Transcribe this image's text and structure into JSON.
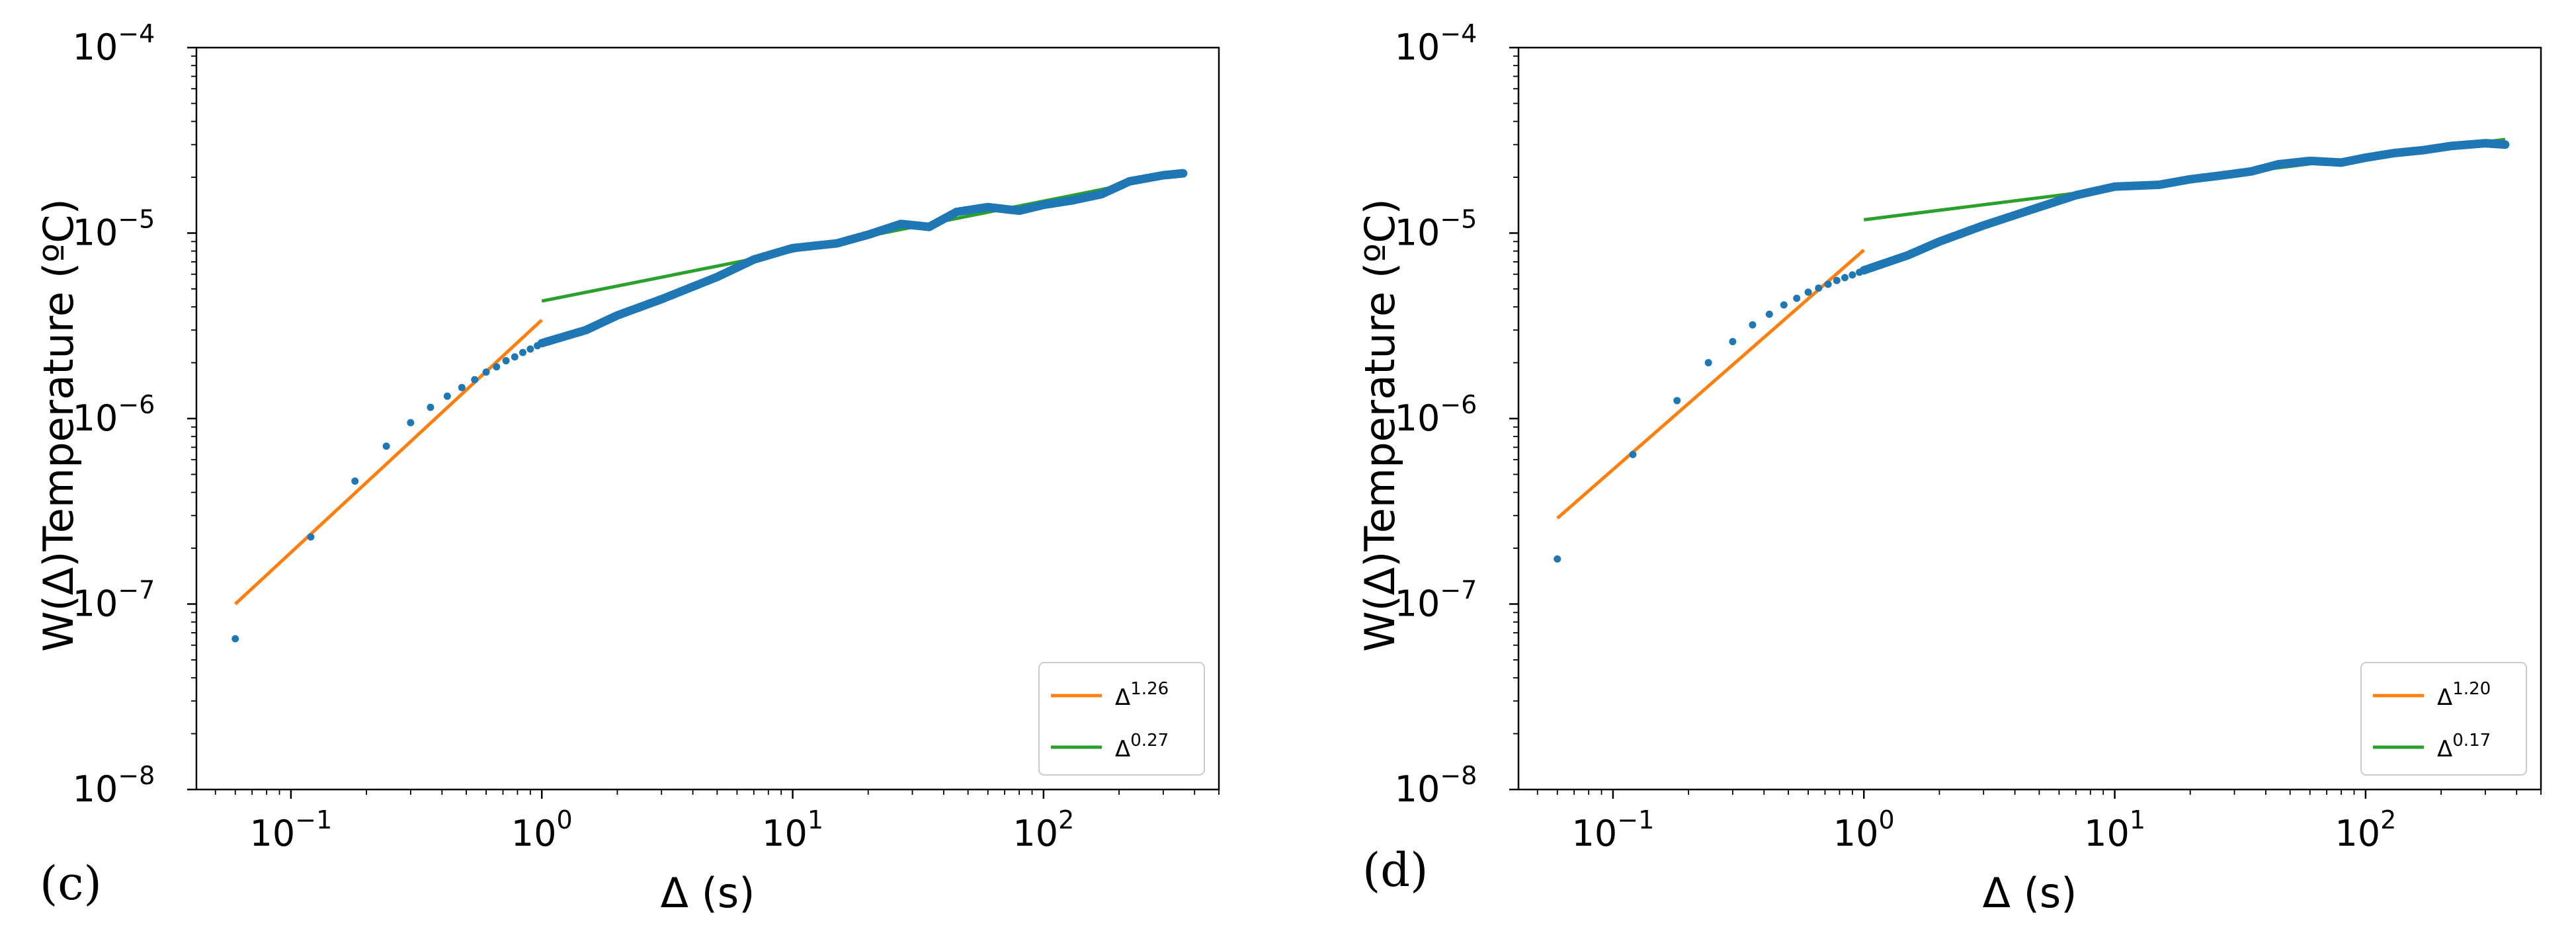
{
  "chart_data": [
    {
      "type": "scatter",
      "panel_label": "(c)",
      "xscale": "log",
      "yscale": "log",
      "xlim": [
        0.042,
        500
      ],
      "ylim": [
        1e-08,
        0.0001
      ],
      "xlabel": "Δ (s)",
      "ylabel": "W(Δ)Temperature (ºC)",
      "x_ticks": [
        {
          "base": "10",
          "exp": "−1"
        },
        {
          "base": "10",
          "exp": "0"
        },
        {
          "base": "10",
          "exp": "1"
        },
        {
          "base": "10",
          "exp": "2"
        }
      ],
      "y_ticks": [
        {
          "base": "10",
          "exp": "−8"
        },
        {
          "base": "10",
          "exp": "−7"
        },
        {
          "base": "10",
          "exp": "−6"
        },
        {
          "base": "10",
          "exp": "−5"
        },
        {
          "base": "10",
          "exp": "−4"
        }
      ],
      "data_series": {
        "name": "W(Δ)",
        "color": "#1f77b4",
        "points": [
          [
            0.06,
            6.5e-08
          ],
          [
            0.12,
            2.3e-07
          ],
          [
            0.18,
            4.6e-07
          ],
          [
            0.24,
            7.1e-07
          ],
          [
            0.3,
            9.5e-07
          ],
          [
            0.36,
            1.15e-06
          ],
          [
            0.42,
            1.32e-06
          ],
          [
            0.48,
            1.47e-06
          ],
          [
            0.54,
            1.62e-06
          ],
          [
            0.6,
            1.78e-06
          ],
          [
            0.66,
            1.9e-06
          ],
          [
            0.72,
            2.05e-06
          ],
          [
            0.78,
            2.15e-06
          ],
          [
            0.84,
            2.27e-06
          ],
          [
            0.9,
            2.37e-06
          ],
          [
            0.96,
            2.47e-06
          ]
        ],
        "curve": [
          [
            1.0,
            2.55e-06
          ],
          [
            1.5,
            3e-06
          ],
          [
            2.0,
            3.6e-06
          ],
          [
            3.0,
            4.4e-06
          ],
          [
            5.0,
            5.8e-06
          ],
          [
            7.0,
            7.2e-06
          ],
          [
            10.0,
            8.3e-06
          ],
          [
            15.0,
            8.8e-06
          ],
          [
            20.0,
            9.8e-06
          ],
          [
            27.0,
            1.12e-05
          ],
          [
            35.0,
            1.08e-05
          ],
          [
            45.0,
            1.3e-05
          ],
          [
            60.0,
            1.38e-05
          ],
          [
            80.0,
            1.32e-05
          ],
          [
            100.0,
            1.42e-05
          ],
          [
            130.0,
            1.5e-05
          ],
          [
            170.0,
            1.62e-05
          ],
          [
            220.0,
            1.9e-05
          ],
          [
            300.0,
            2.05e-05
          ],
          [
            360.0,
            2.1e-05
          ]
        ]
      },
      "fit_lines": [
        {
          "label_base": "Δ",
          "label_exp": "1.26",
          "color": "#ff7f0e",
          "exponent": 1.26,
          "x": [
            0.06,
            1.0
          ],
          "y": [
            1e-07,
            3.4e-06
          ]
        },
        {
          "label_base": "Δ",
          "label_exp": "0.27",
          "color": "#2ca02c",
          "exponent": 0.27,
          "x": [
            1.0,
            360.0
          ],
          "y": [
            4.3e-06,
            2.1e-05
          ]
        }
      ],
      "legend": {
        "position": "lower right"
      }
    },
    {
      "type": "scatter",
      "panel_label": "(d)",
      "xscale": "log",
      "yscale": "log",
      "xlim": [
        0.042,
        500
      ],
      "ylim": [
        1e-08,
        0.0001
      ],
      "xlabel": "Δ (s)",
      "ylabel": "W(Δ)Temperature (ºC)",
      "x_ticks": [
        {
          "base": "10",
          "exp": "−1"
        },
        {
          "base": "10",
          "exp": "0"
        },
        {
          "base": "10",
          "exp": "1"
        },
        {
          "base": "10",
          "exp": "2"
        }
      ],
      "y_ticks": [
        {
          "base": "10",
          "exp": "−8"
        },
        {
          "base": "10",
          "exp": "−7"
        },
        {
          "base": "10",
          "exp": "−6"
        },
        {
          "base": "10",
          "exp": "−5"
        },
        {
          "base": "10",
          "exp": "−4"
        }
      ],
      "data_series": {
        "name": "W(Δ)",
        "color": "#1f77b4",
        "points": [
          [
            0.06,
            1.75e-07
          ],
          [
            0.12,
            6.4e-07
          ],
          [
            0.18,
            1.25e-06
          ],
          [
            0.24,
            2e-06
          ],
          [
            0.3,
            2.6e-06
          ],
          [
            0.36,
            3.2e-06
          ],
          [
            0.42,
            3.65e-06
          ],
          [
            0.48,
            4.1e-06
          ],
          [
            0.54,
            4.45e-06
          ],
          [
            0.6,
            4.8e-06
          ],
          [
            0.66,
            5.05e-06
          ],
          [
            0.72,
            5.3e-06
          ],
          [
            0.78,
            5.55e-06
          ],
          [
            0.84,
            5.75e-06
          ],
          [
            0.9,
            5.95e-06
          ],
          [
            0.96,
            6.15e-06
          ]
        ],
        "curve": [
          [
            1.0,
            6.3e-06
          ],
          [
            1.5,
            7.6e-06
          ],
          [
            2.0,
            9e-06
          ],
          [
            3.0,
            1.1e-05
          ],
          [
            5.0,
            1.38e-05
          ],
          [
            7.0,
            1.6e-05
          ],
          [
            10.0,
            1.78e-05
          ],
          [
            15.0,
            1.82e-05
          ],
          [
            20.0,
            1.95e-05
          ],
          [
            27.0,
            2.05e-05
          ],
          [
            35.0,
            2.15e-05
          ],
          [
            45.0,
            2.35e-05
          ],
          [
            60.0,
            2.45e-05
          ],
          [
            80.0,
            2.4e-05
          ],
          [
            100.0,
            2.55e-05
          ],
          [
            130.0,
            2.7e-05
          ],
          [
            170.0,
            2.8e-05
          ],
          [
            220.0,
            2.95e-05
          ],
          [
            300.0,
            3.05e-05
          ],
          [
            360.0,
            3e-05
          ]
        ]
      },
      "fit_lines": [
        {
          "label_base": "Δ",
          "label_exp": "1.20",
          "color": "#ff7f0e",
          "exponent": 1.2,
          "x": [
            0.06,
            1.0
          ],
          "y": [
            2.9e-07,
            8.1e-06
          ]
        },
        {
          "label_base": "Δ",
          "label_exp": "0.17",
          "color": "#2ca02c",
          "exponent": 0.17,
          "x": [
            1.0,
            360.0
          ],
          "y": [
            1.18e-05,
            3.2e-05
          ]
        }
      ],
      "legend": {
        "position": "lower right"
      }
    }
  ]
}
